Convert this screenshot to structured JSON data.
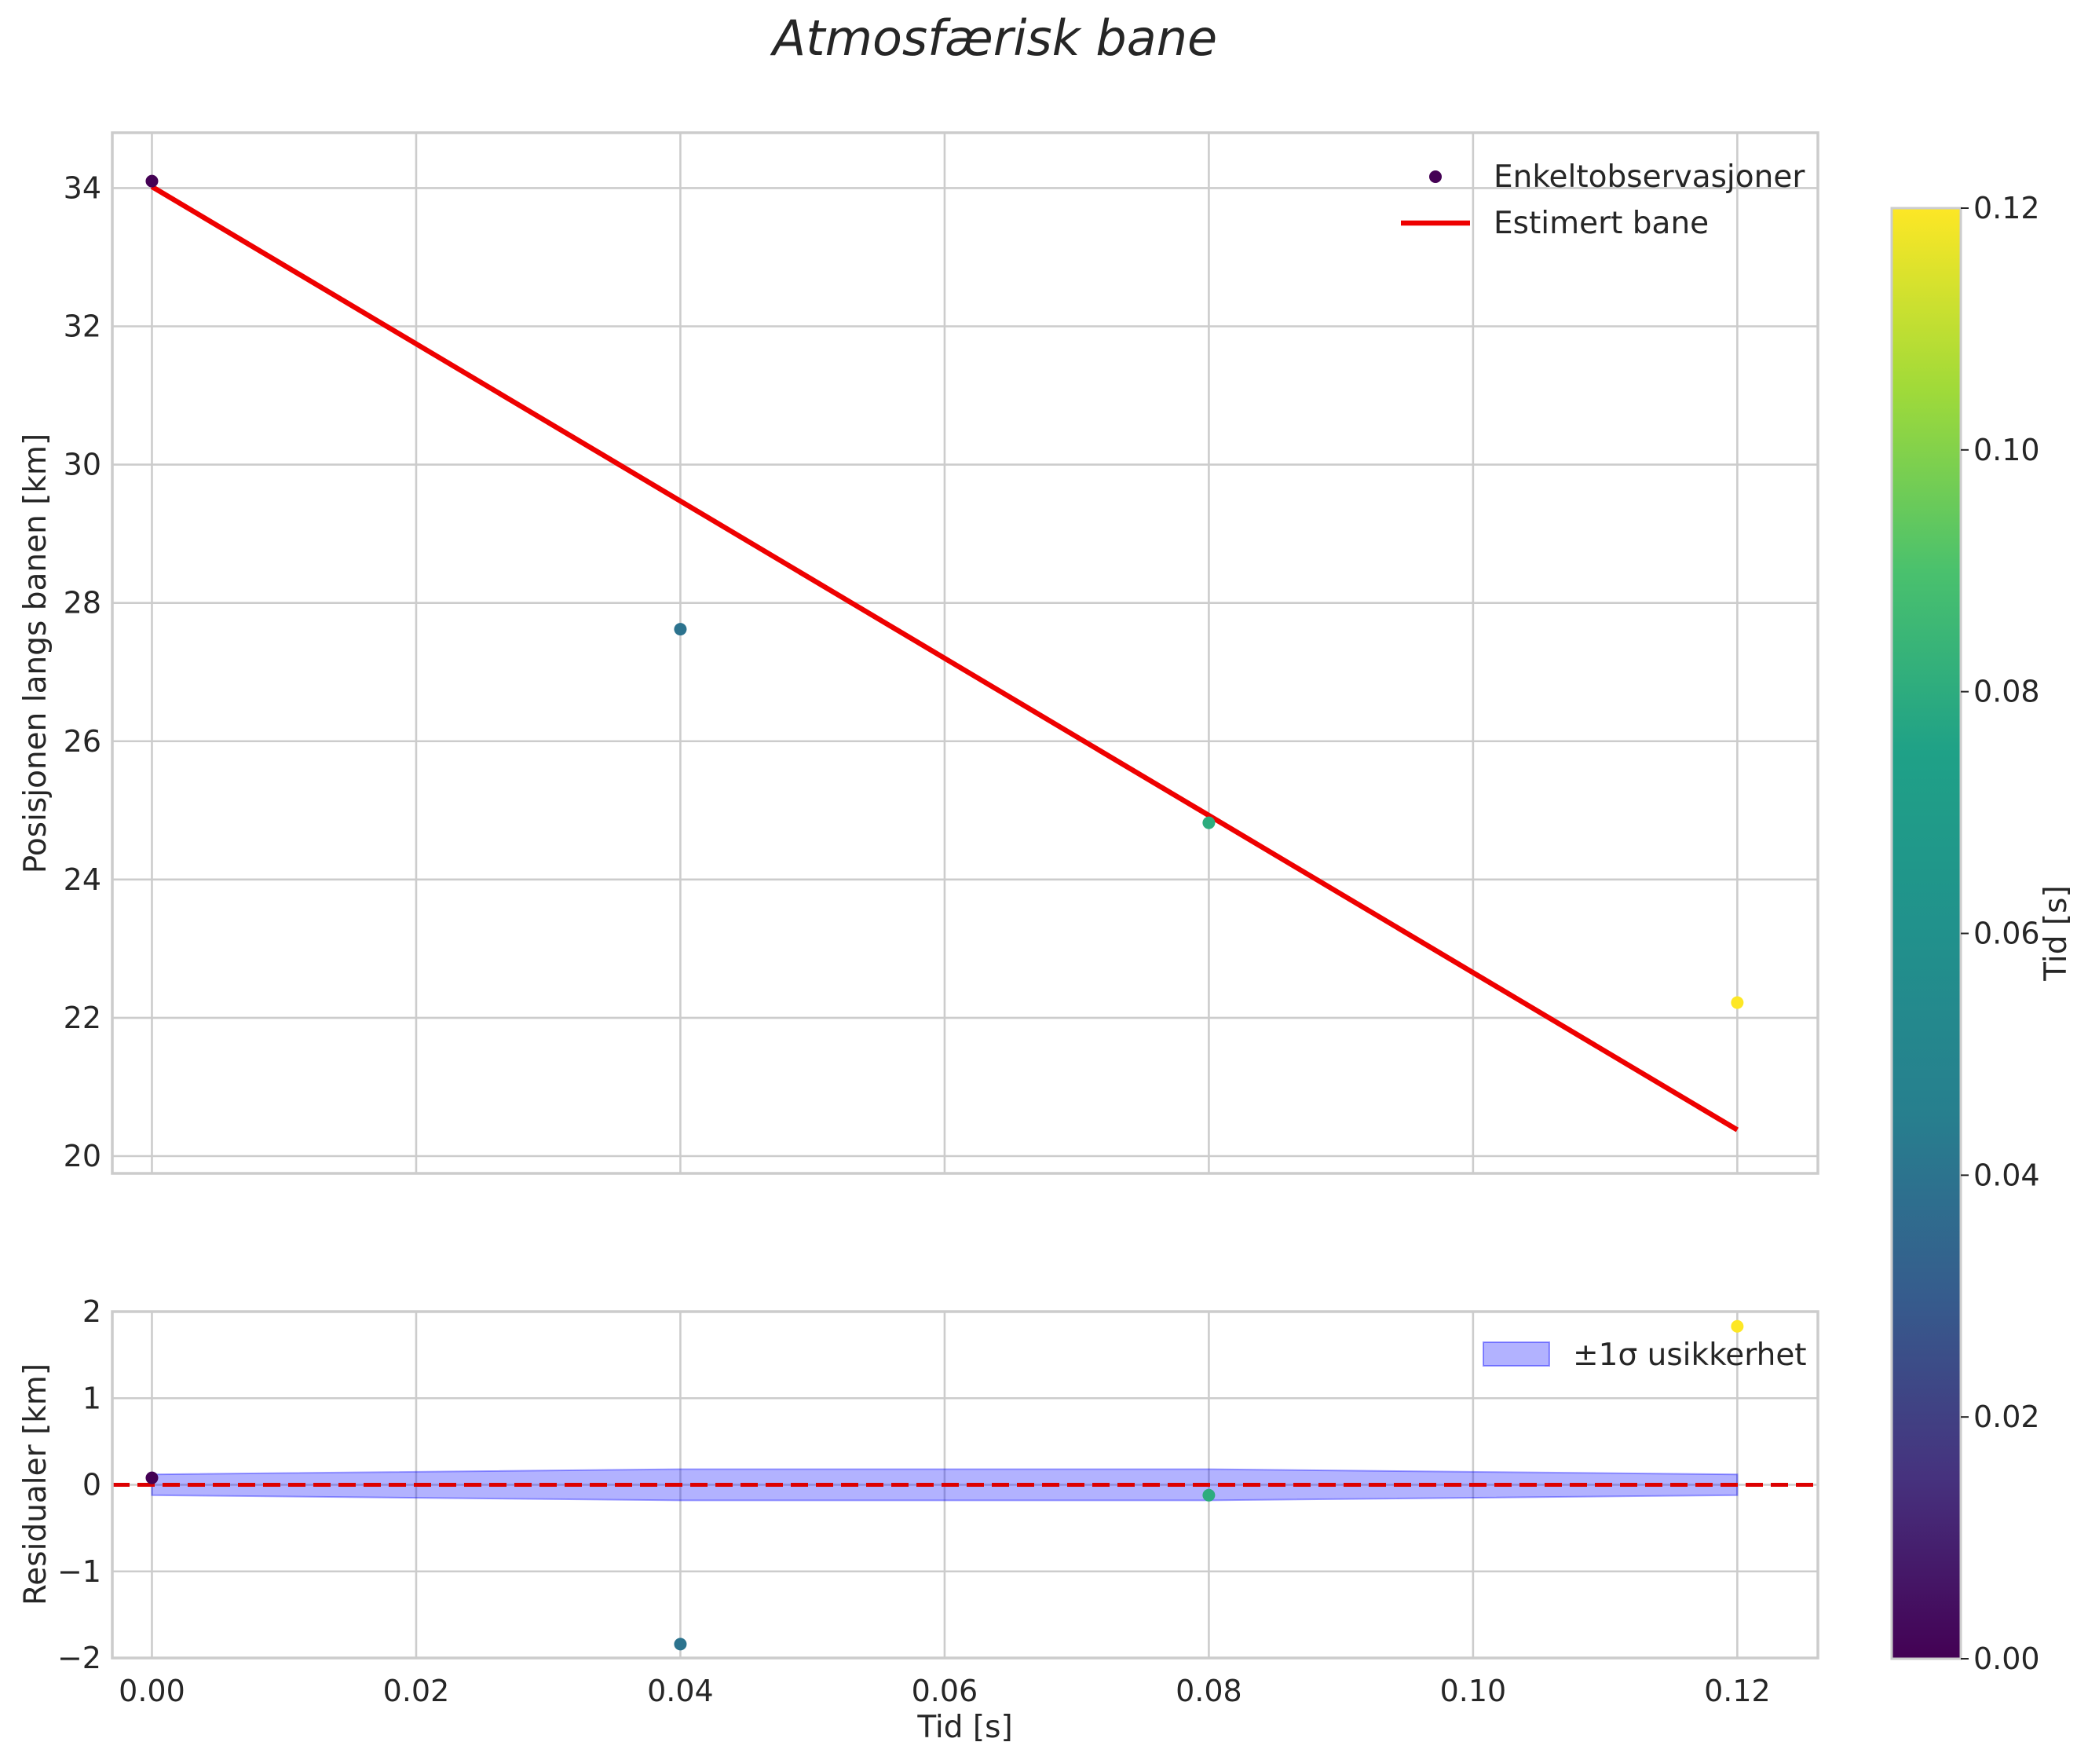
{
  "title": "Atmosfærisk bane",
  "colors": {
    "fit_line": "#ee0000",
    "zero_line": "#dd0000",
    "band_fill": "#0000ff",
    "grid": "#cccccc",
    "colormap": "viridis"
  },
  "chart_data": [
    {
      "type": "scatter",
      "panel": "main",
      "xlabel": "",
      "ylabel": "Posisjonen langs banen [km]",
      "xlim": [
        -0.003,
        0.1261
      ],
      "ylim": [
        19.75,
        34.8
      ],
      "xticks": [
        0.0,
        0.02,
        0.04,
        0.06,
        0.08,
        0.1,
        0.12
      ],
      "yticks": [
        20,
        22,
        24,
        26,
        28,
        30,
        32,
        34
      ],
      "ytick_labels": [
        "20",
        "22",
        "24",
        "26",
        "28",
        "30",
        "32",
        "34"
      ],
      "grid": true,
      "legend_position": "top-right",
      "series": [
        {
          "name": "Enkeltobservasjoner",
          "kind": "scatter",
          "color_by": "x",
          "points": [
            {
              "x": 0.0,
              "y": 34.1
            },
            {
              "x": 0.04,
              "y": 27.62
            },
            {
              "x": 0.08,
              "y": 24.82
            },
            {
              "x": 0.12,
              "y": 22.22
            }
          ]
        },
        {
          "name": "Estimert bane",
          "kind": "line",
          "color": "#ee0000",
          "points": [
            {
              "x": 0.0,
              "y": 34.02
            },
            {
              "x": 0.12,
              "y": 20.38
            }
          ]
        }
      ]
    },
    {
      "type": "scatter",
      "panel": "residuals",
      "xlabel": "Tid [s]",
      "ylabel": "Residualer [km]",
      "xlim": [
        -0.003,
        0.1261
      ],
      "ylim": [
        -2.0,
        2.0
      ],
      "xticks": [
        0.0,
        0.02,
        0.04,
        0.06,
        0.08,
        0.1,
        0.12
      ],
      "xtick_labels": [
        "0.00",
        "0.02",
        "0.04",
        "0.06",
        "0.08",
        "0.10",
        "0.12"
      ],
      "yticks": [
        -2,
        -1,
        0,
        1,
        2
      ],
      "ytick_labels": [
        "−2",
        "−1",
        "0",
        "1",
        "2"
      ],
      "grid": true,
      "legend_position": "top-right",
      "series": [
        {
          "name": "±1σ usikkerhet",
          "kind": "band",
          "color": "#0000ff",
          "points": [
            {
              "x": 0.0,
              "low": -0.12,
              "high": 0.12
            },
            {
              "x": 0.04,
              "low": -0.18,
              "high": 0.18
            },
            {
              "x": 0.08,
              "low": -0.18,
              "high": 0.18
            },
            {
              "x": 0.12,
              "low": -0.12,
              "high": 0.12
            }
          ]
        },
        {
          "kind": "scatter",
          "color_by": "x",
          "points": [
            {
              "x": 0.0,
              "y": 0.08
            },
            {
              "x": 0.04,
              "y": -1.84
            },
            {
              "x": 0.08,
              "y": -0.12
            },
            {
              "x": 0.12,
              "y": 1.83
            }
          ]
        },
        {
          "kind": "hline",
          "style": "dashed",
          "color": "#dd0000",
          "y": 0
        }
      ]
    }
  ],
  "colorbar": {
    "label": "Tid [s]",
    "range": [
      0.0,
      0.12
    ],
    "ticks": [
      0.0,
      0.02,
      0.04,
      0.06,
      0.08,
      0.1,
      0.12
    ],
    "tick_labels": [
      "0.00",
      "0.02",
      "0.04",
      "0.06",
      "0.08",
      "0.10",
      "0.12"
    ],
    "colormap": "viridis"
  }
}
